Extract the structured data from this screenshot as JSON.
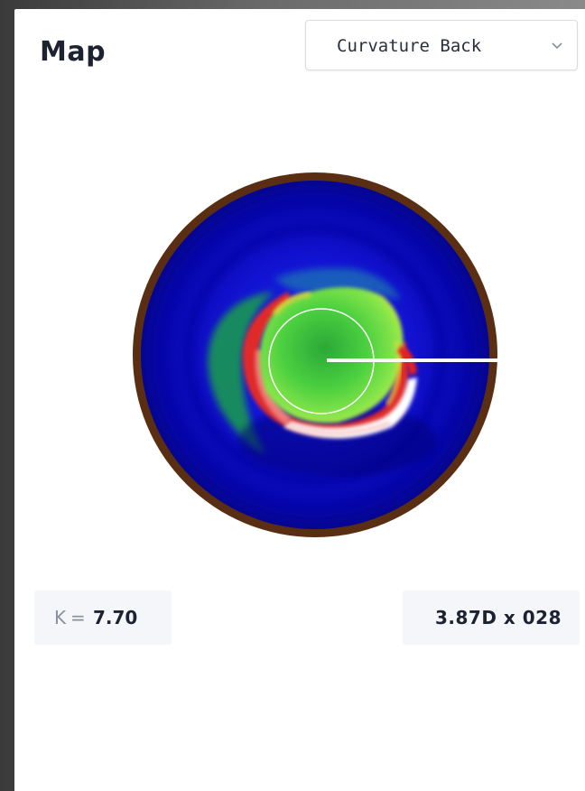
{
  "header": {
    "title": "Map"
  },
  "map_select": {
    "selected": "Curvature Back",
    "icon": "chevron-down-icon"
  },
  "stats": {
    "k_label": "K",
    "k_equals": "=",
    "k_value": "7.70",
    "power_axis": "3.87D x 028"
  },
  "colors": {
    "rim": "#5a2e12",
    "deep_blue": "#00009a",
    "blue": "#1414e6",
    "green": "#22b43a",
    "light_green": "#7ae84a",
    "yellow": "#e8e23a",
    "red": "#e02020",
    "pink": "#f08a8a",
    "white": "#ffffff"
  }
}
